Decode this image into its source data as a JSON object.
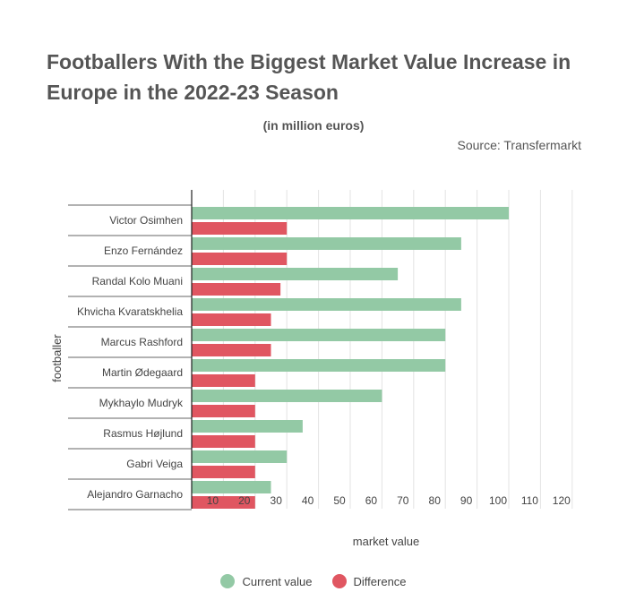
{
  "chart_data": {
    "type": "bar",
    "orientation": "horizontal",
    "title": "Footballers With the Biggest Market Value Increase in Europe in the 2022-23 Season",
    "subtitle": "(in million euros)",
    "source": "Source: Transfermarkt",
    "xlabel": "market value",
    "ylabel": "footballer",
    "categories": [
      "Victor Osimhen",
      "Enzo Fernández",
      "Randal Kolo Muani",
      "Khvicha Kvaratskhelia",
      "Marcus Rashford",
      "Martin Ødegaard",
      "Mykhaylo Mudryk",
      "Rasmus Højlund",
      "Gabri Veiga",
      "Alejandro Garnacho"
    ],
    "series": [
      {
        "name": "Current value",
        "color": "#93c9a5",
        "values": [
          100,
          85,
          65,
          85,
          80,
          80,
          60,
          35,
          30,
          25
        ]
      },
      {
        "name": "Difference",
        "color": "#e05661",
        "values": [
          30,
          30,
          28,
          25,
          25,
          20,
          20,
          20,
          20,
          20
        ]
      }
    ],
    "xticks": [
      10,
      20,
      30,
      40,
      50,
      60,
      70,
      80,
      90,
      100,
      110,
      120
    ],
    "xlim": [
      0,
      120
    ],
    "grid": true,
    "legend_position": "bottom-center"
  }
}
